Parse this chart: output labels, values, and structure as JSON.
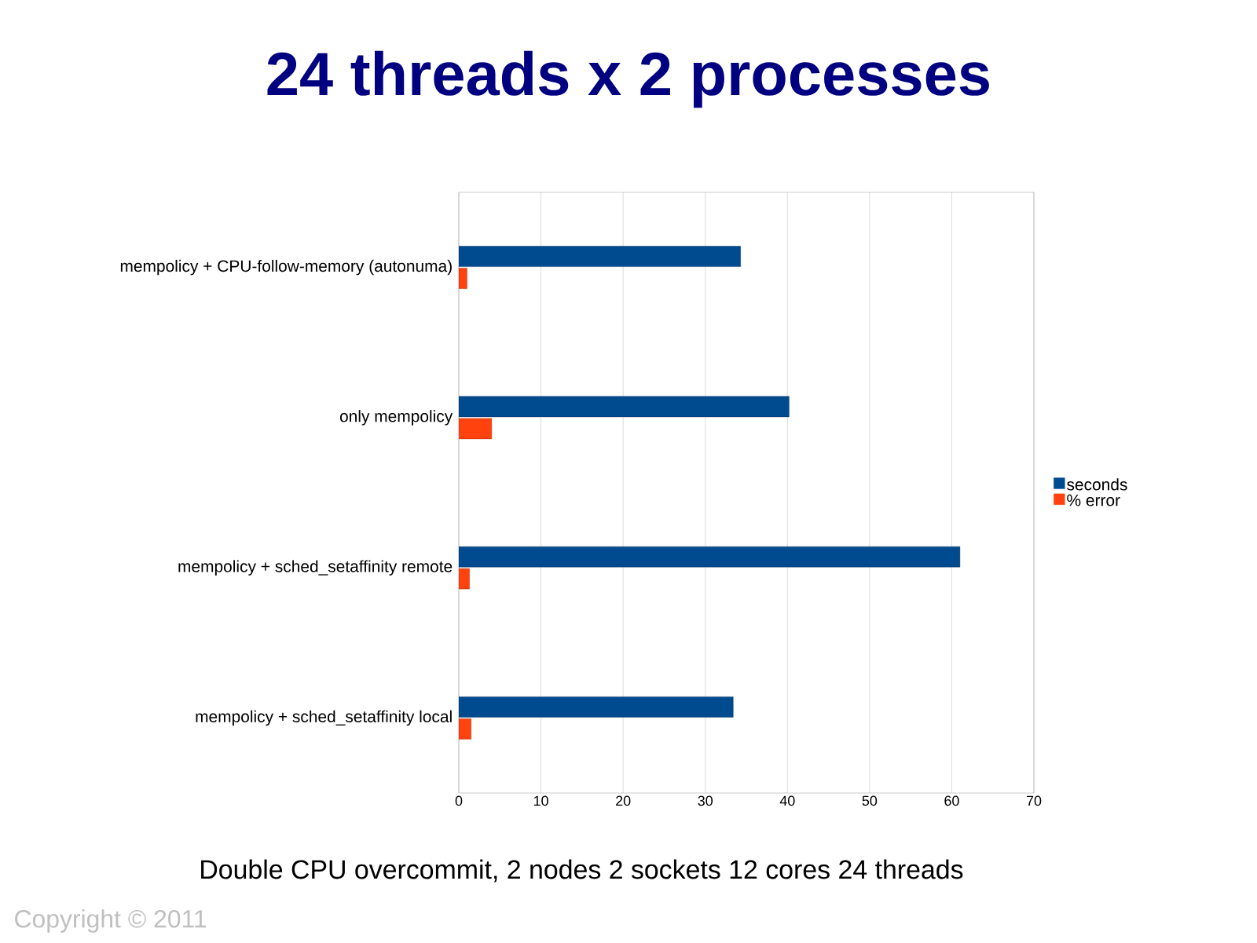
{
  "chart_data": {
    "type": "bar",
    "orientation": "horizontal",
    "title": "24 threads x 2 processes",
    "categories": [
      "mempolicy + CPU-follow-memory (autonuma)",
      "only mempolicy",
      "mempolicy + sched_setaffinity remote",
      "mempolicy + sched_setaffinity local"
    ],
    "series": [
      {
        "name": "seconds",
        "color": "#004a8f",
        "values": [
          34.3,
          40.2,
          61,
          33.4
        ]
      },
      {
        "name": "% error",
        "color": "#ff420e",
        "values": [
          1,
          4,
          1.3,
          1.5
        ]
      }
    ],
    "xlim": [
      0,
      70
    ],
    "xticks": [
      0,
      10,
      20,
      30,
      40,
      50,
      60,
      70
    ],
    "grid": "x",
    "legend": "right",
    "annotations": [
      "Double CPU overcommit, 2 nodes 2 sockets 12 cores 24 threads",
      "Copyright © 2011"
    ]
  }
}
